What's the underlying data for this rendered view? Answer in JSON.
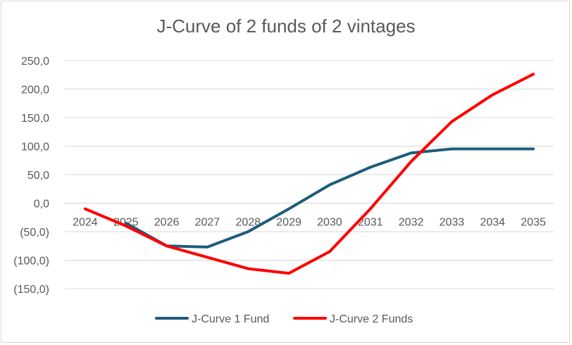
{
  "chart_data": {
    "type": "line",
    "title": "J-Curve of 2 funds of 2 vintages",
    "xlabel": "",
    "ylabel": "",
    "categories": [
      "2024",
      "2025",
      "2026",
      "2027",
      "2028",
      "2029",
      "2030",
      "2031",
      "2032",
      "2033",
      "2034",
      "2035"
    ],
    "y_ticks": [
      "250,0",
      "200,0",
      "150,0",
      "100,0",
      "50,0",
      "0,0",
      "(50,0)",
      "(100,0)",
      "(150,0)"
    ],
    "ylim": [
      -150,
      250
    ],
    "grid": true,
    "legend": "bottom",
    "series": [
      {
        "name": "J-Curve 1 Fund",
        "color": "#1f5c7a",
        "values": [
          null,
          -35,
          -75,
          -77,
          -50,
          -10,
          32,
          63,
          88,
          95,
          95,
          95
        ]
      },
      {
        "name": "J-Curve 2 Funds",
        "color": "#ff0000",
        "values": [
          -10,
          -40,
          -75,
          -95,
          -115,
          -123,
          -85,
          -10,
          73,
          143,
          190,
          226
        ]
      }
    ]
  }
}
